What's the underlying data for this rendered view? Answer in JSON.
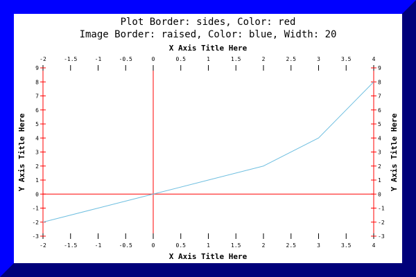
{
  "chart_data": {
    "type": "line",
    "title": "Plot Border: sides, Color: red",
    "subtitle": "Image Border: raised, Color: blue, Width: 20",
    "xlabel": "X Axis Title Here",
    "ylabel": "Y Axis Title Here",
    "xlim": [
      -2,
      4
    ],
    "ylim": [
      -3,
      9
    ],
    "x_ticks": [
      "-2",
      "-1.5",
      "-1",
      "-0.5",
      "0",
      "0.5",
      "1",
      "1.5",
      "2",
      "2.5",
      "3",
      "3.5",
      "4"
    ],
    "y_ticks": [
      "-3",
      "-2",
      "-1",
      "0",
      "1",
      "2",
      "3",
      "4",
      "5",
      "6",
      "7",
      "8",
      "9"
    ],
    "grid": false,
    "series": [
      {
        "color": "#6fbfe0",
        "x": [
          -2,
          -1,
          0,
          1,
          2,
          3,
          4
        ],
        "y": [
          -2,
          -1,
          0,
          1,
          2,
          4,
          8
        ]
      }
    ],
    "colors": {
      "plot_border": "#ff0000",
      "image_border": "#0000ff",
      "zero_lines": "#ff0000"
    }
  }
}
